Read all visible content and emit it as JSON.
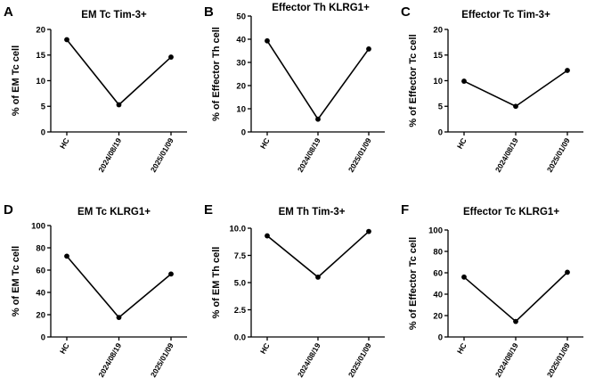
{
  "chart_data": [
    {
      "panel": "A",
      "type": "line",
      "title": "EM Tc Tim-3+",
      "ylabel": "% of EM Tc cell",
      "xlabel": "",
      "categories": [
        "HC",
        "2024/08/19",
        "2025/01/09"
      ],
      "values": [
        18,
        5.3,
        14.6
      ],
      "ylim": [
        0,
        20
      ],
      "yticks": [
        0,
        5,
        10,
        15,
        20
      ],
      "ytick_labels": [
        "0",
        "5",
        "10",
        "15",
        "20"
      ]
    },
    {
      "panel": "B",
      "type": "line",
      "title": "Effector Th KLRG1+",
      "ylabel": "% of Effector Th cell",
      "xlabel": "",
      "categories": [
        "HC",
        "2024/08/19",
        "2025/01/09"
      ],
      "values": [
        39.3,
        5.5,
        35.8
      ],
      "ylim": [
        0,
        50
      ],
      "yticks": [
        0,
        10,
        20,
        30,
        40,
        50
      ],
      "ytick_labels": [
        "0",
        "10",
        "20",
        "30",
        "40",
        "50"
      ]
    },
    {
      "panel": "C",
      "type": "line",
      "title": "Effector Tc Tim-3+",
      "ylabel": "% of Effector Tc cell",
      "xlabel": "",
      "categories": [
        "HC",
        "2024/08/19",
        "2025/01/09"
      ],
      "values": [
        9.9,
        5,
        12
      ],
      "ylim": [
        0,
        20
      ],
      "yticks": [
        0,
        5,
        10,
        15,
        20
      ],
      "ytick_labels": [
        "0",
        "5",
        "10",
        "15",
        "20"
      ]
    },
    {
      "panel": "D",
      "type": "line",
      "title": "EM Tc KLRG1+",
      "ylabel": "% of EM Tc cell",
      "xlabel": "",
      "categories": [
        "HC",
        "2024/08/19",
        "2025/01/09"
      ],
      "values": [
        72.5,
        17.5,
        56.5
      ],
      "ylim": [
        0,
        100
      ],
      "yticks": [
        0,
        20,
        40,
        60,
        80,
        100
      ],
      "ytick_labels": [
        "0",
        "20",
        "40",
        "60",
        "80",
        "100"
      ]
    },
    {
      "panel": "E",
      "type": "line",
      "title": "EM Th Tim-3+",
      "ylabel": "% of EM Th cell",
      "xlabel": "",
      "categories": [
        "HC",
        "2024/08/19",
        "2025/01/09"
      ],
      "values": [
        9.3,
        5.5,
        9.7
      ],
      "ylim": [
        0,
        10
      ],
      "yticks": [
        0,
        2.5,
        5,
        7.5,
        10
      ],
      "ytick_labels": [
        "0.0",
        "2.5",
        "5.0",
        "7.5",
        "10.0"
      ]
    },
    {
      "panel": "F",
      "type": "line",
      "title": "Effector Tc KLRG1+",
      "ylabel": "% of Effector Tc cell",
      "xlabel": "",
      "categories": [
        "HC",
        "2024/08/19",
        "2025/01/09"
      ],
      "values": [
        56,
        14.5,
        60.5
      ],
      "ylim": [
        0,
        100
      ],
      "yticks": [
        0,
        20,
        40,
        60,
        80,
        100
      ],
      "ytick_labels": [
        "0",
        "20",
        "40",
        "60",
        "80",
        "100"
      ]
    }
  ]
}
